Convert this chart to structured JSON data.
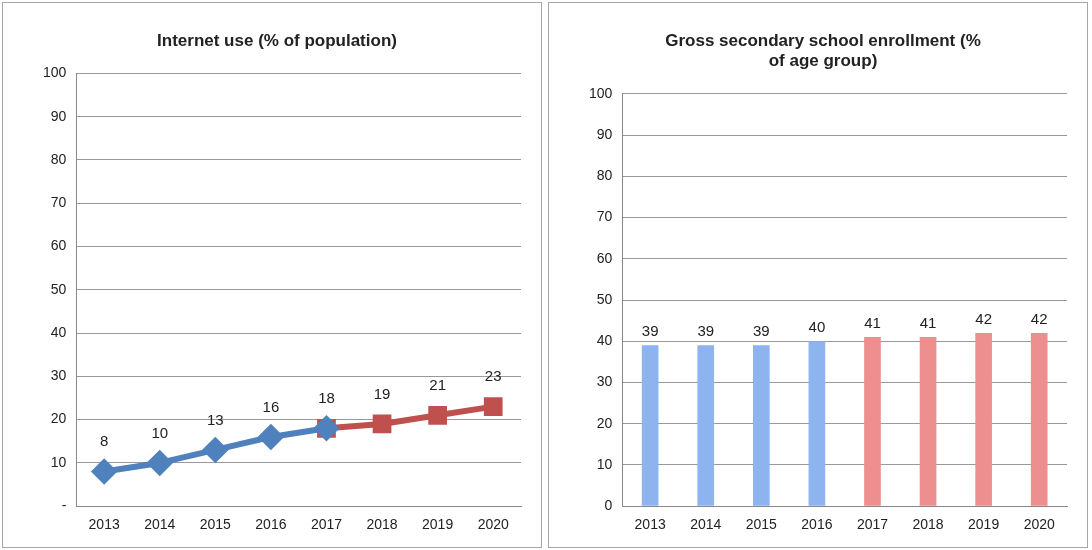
{
  "chart_data": [
    {
      "type": "line",
      "title": "Internet use (% of population)",
      "categories": [
        "2013",
        "2014",
        "2015",
        "2016",
        "2017",
        "2018",
        "2019",
        "2020"
      ],
      "series": [
        {
          "color": "#4f81bd",
          "marker": "diamond",
          "values": [
            8,
            10,
            13,
            16,
            18,
            null,
            null,
            null
          ],
          "value_labels": [
            "8",
            "10",
            "13",
            "16",
            null,
            null,
            null,
            null
          ]
        },
        {
          "color": "#c0504d",
          "marker": "square",
          "values": [
            null,
            null,
            null,
            null,
            18,
            19,
            21,
            23
          ],
          "value_labels": [
            null,
            null,
            null,
            null,
            "18",
            "19",
            "21",
            "23"
          ]
        }
      ],
      "ylim": [
        0,
        100
      ],
      "yticks": [
        {
          "value": 0,
          "label": "-"
        },
        10,
        20,
        30,
        40,
        50,
        60,
        70,
        80,
        90,
        100
      ],
      "grid": "y",
      "legend": false
    },
    {
      "type": "bar",
      "title": "Gross secondary school enrollment (% of age group)",
      "categories": [
        "2013",
        "2014",
        "2015",
        "2016",
        "2017",
        "2018",
        "2019",
        "2020"
      ],
      "values": [
        39,
        39,
        39,
        40,
        41,
        41,
        42,
        42
      ],
      "colors": [
        "#8db4ee",
        "#8db4ee",
        "#8db4ee",
        "#8db4ee",
        "#ee8f8f",
        "#ee8f8f",
        "#ee8f8f",
        "#ee8f8f"
      ],
      "data_labels": true,
      "ylim": [
        0,
        100
      ],
      "yticks": [
        0,
        10,
        20,
        30,
        40,
        50,
        60,
        70,
        80,
        90,
        100
      ],
      "grid": "y",
      "legend": false
    }
  ]
}
